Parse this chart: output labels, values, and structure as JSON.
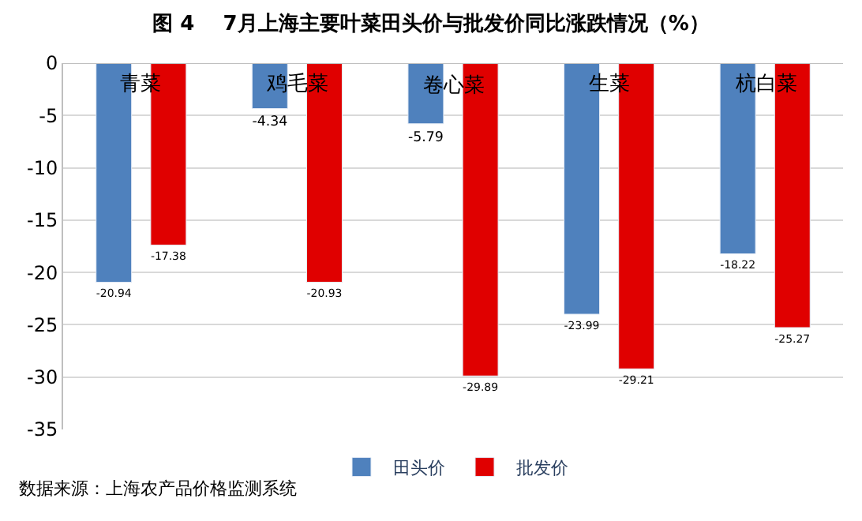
{
  "chart_data": {
    "type": "bar",
    "title": "图 4    7月上海主要叶菜田头价与批发价同比涨跌情况（%）",
    "categories": [
      "青菜",
      "鸡毛菜",
      "卷心菜",
      "生菜",
      "杭白菜"
    ],
    "series": [
      {
        "name": "田头价",
        "color": "#4f81bd",
        "values": [
          -20.94,
          -4.34,
          -5.79,
          -23.99,
          -18.22
        ]
      },
      {
        "name": "批发价",
        "color": "#e00000",
        "values": [
          -17.38,
          -20.93,
          -29.89,
          -29.21,
          -25.27
        ]
      }
    ],
    "ylim": [
      -35,
      0
    ],
    "yticks": [
      -35,
      -30,
      -25,
      -20,
      -15,
      -10,
      -5,
      0
    ],
    "grid": "y",
    "legend": "bottom",
    "data_labels": true,
    "annotations": [
      "数据来源：上海农产品价格监测系统"
    ]
  }
}
